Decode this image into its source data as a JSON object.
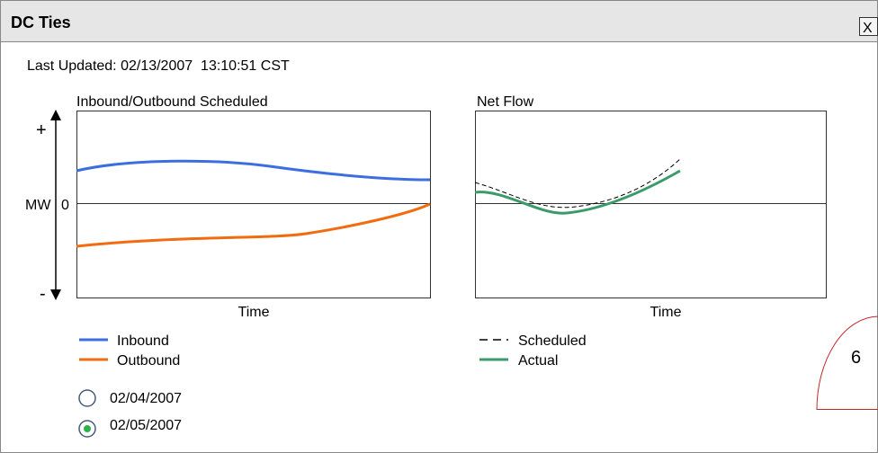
{
  "window": {
    "title": "DC Ties",
    "close": "X"
  },
  "last_updated": "Last Updated: 02/13/2007  13:10:51 CST",
  "left_chart": {
    "title": "Inbound/Outbound Scheduled",
    "x_label": "Time",
    "y_label": "MW",
    "plus": "+",
    "minus": "-",
    "zero": "0",
    "legend": [
      "Inbound",
      "Outbound"
    ]
  },
  "right_chart": {
    "title": "Net Flow",
    "x_label": "Time",
    "legend": [
      "Scheduled",
      "Actual"
    ]
  },
  "dates": [
    "02/04/2007",
    "02/05/2007"
  ],
  "badge": "6"
}
